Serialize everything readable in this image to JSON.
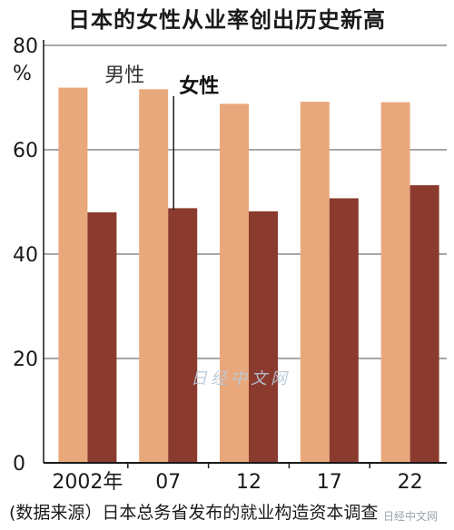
{
  "chart_data": {
    "type": "bar",
    "title": "日本的女性从业率创出历史新高",
    "ylabel": "%",
    "ylim": [
      0,
      80
    ],
    "yticks": [
      0,
      20,
      40,
      60,
      80
    ],
    "categories": [
      "2002年",
      "07",
      "12",
      "17",
      "22"
    ],
    "series": [
      {
        "name": "男性",
        "values": [
          71.9,
          71.6,
          68.8,
          69.2,
          69.1
        ],
        "color": "#e9a87c"
      },
      {
        "name": "女性",
        "values": [
          48.0,
          48.8,
          48.2,
          50.7,
          53.2
        ],
        "color": "#8b3a2e"
      }
    ],
    "grid": true,
    "grid_color": "#8a8a8a",
    "source": "(数据来源）日本总务省发布的就业构造资本调查",
    "watermark": "日经中文网"
  }
}
